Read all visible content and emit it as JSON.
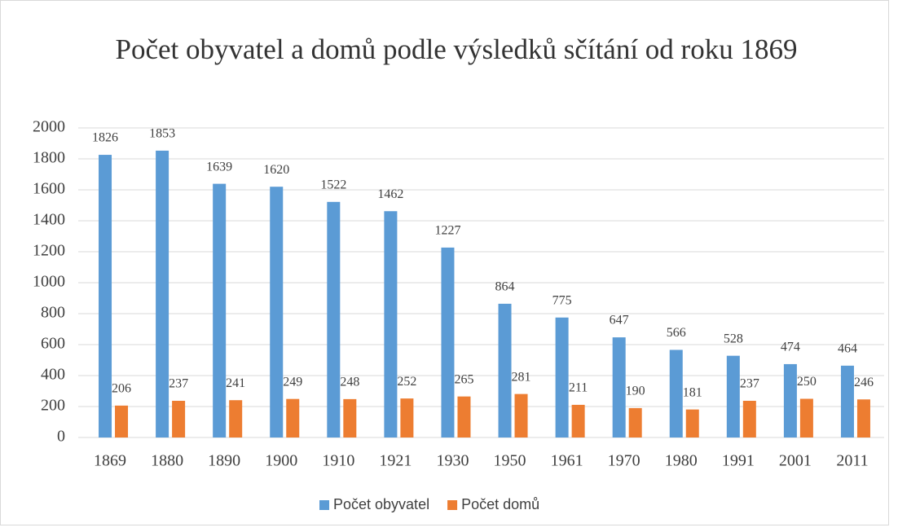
{
  "chart_data": {
    "type": "bar",
    "title": "Počet obyvatel a domů podle výsledků sčítání od roku 1869",
    "categories": [
      "1869",
      "1880",
      "1890",
      "1900",
      "1910",
      "1921",
      "1930",
      "1950",
      "1961",
      "1970",
      "1980",
      "1991",
      "2001",
      "2011"
    ],
    "series": [
      {
        "name": "Počet obyvatel",
        "color": "#5b9bd5",
        "values": [
          1826,
          1853,
          1639,
          1620,
          1522,
          1462,
          1227,
          864,
          775,
          647,
          566,
          528,
          474,
          464
        ]
      },
      {
        "name": "Počet domů",
        "color": "#ed7d31",
        "values": [
          206,
          237,
          241,
          249,
          248,
          252,
          265,
          281,
          211,
          190,
          181,
          237,
          250,
          246
        ]
      }
    ],
    "ylim": [
      0,
      2000
    ],
    "yticks": [
      0,
      200,
      400,
      600,
      800,
      1000,
      1200,
      1400,
      1600,
      1800,
      2000
    ],
    "grid": true,
    "legend": "bottom"
  }
}
